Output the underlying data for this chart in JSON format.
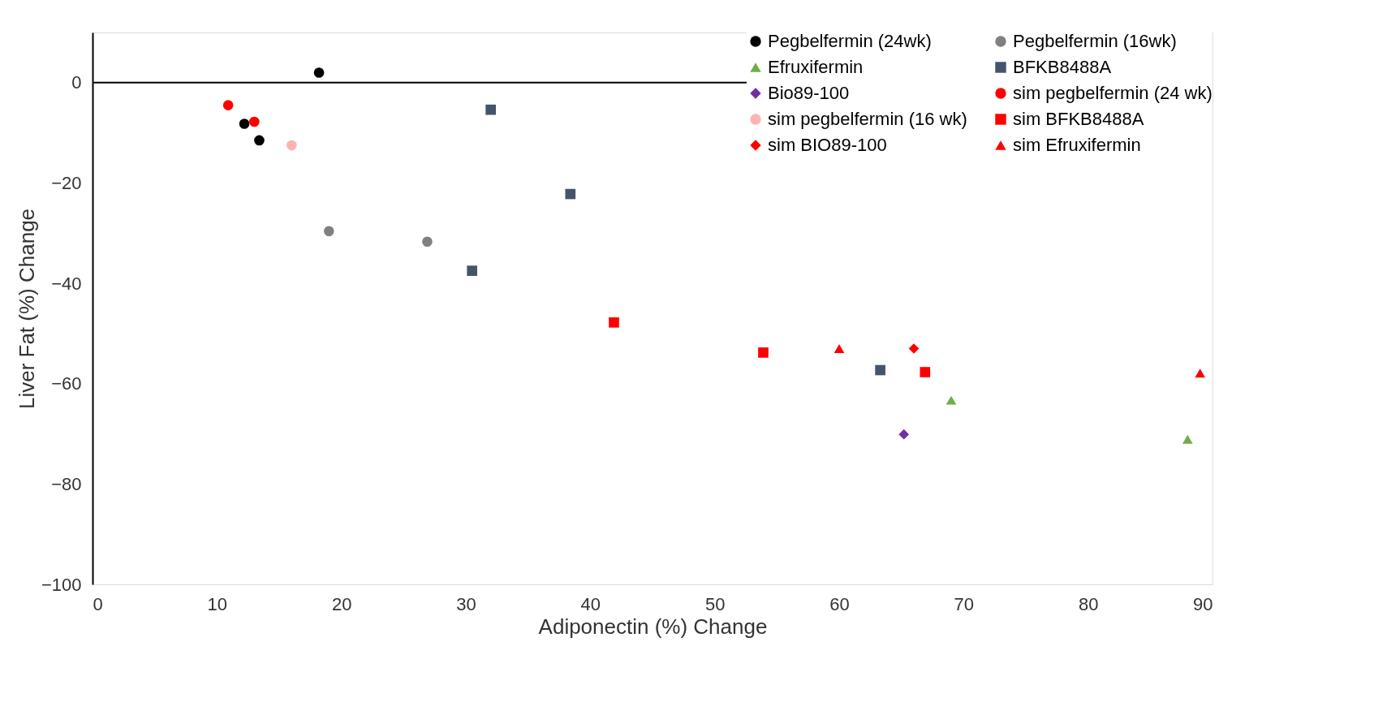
{
  "chart_data": {
    "type": "scatter",
    "xlabel": "Adiponectin (%) Change",
    "ylabel": "Liver Fat (%) Change",
    "xlim": [
      0,
      90
    ],
    "ylim": [
      -100,
      10
    ],
    "xticks": [
      0,
      10,
      20,
      30,
      40,
      50,
      60,
      70,
      80,
      90
    ],
    "yticks": [
      -100,
      -80,
      -60,
      -40,
      -20,
      0
    ],
    "grid": false,
    "legend": "top right",
    "ref_lines": [
      {
        "axis": "y",
        "value": 0
      }
    ],
    "series": [
      {
        "name": "Pegbelfermin (24wk)",
        "color": "#000000",
        "marker": "circle",
        "x": [
          18.2,
          12.2,
          13.4
        ],
        "values": [
          2.0,
          -8.2,
          -11.5
        ]
      },
      {
        "name": "Pegbelfermin (16wk)",
        "color": "#808080",
        "marker": "circle",
        "x": [
          19.0,
          26.9
        ],
        "values": [
          -29.6,
          -31.7
        ]
      },
      {
        "name": "Efruxifermin",
        "color": "#70ad47",
        "marker": "triangle",
        "x": [
          69.0,
          88.0
        ],
        "values": [
          -63.3,
          -71.1
        ]
      },
      {
        "name": "BFKB8488A",
        "color": "#44546a",
        "marker": "square",
        "x": [
          32.0,
          38.4,
          30.5,
          63.3
        ],
        "values": [
          -5.4,
          -22.2,
          -37.5,
          -57.3
        ]
      },
      {
        "name": "Bio89-100",
        "color": "#7030a0",
        "marker": "diamond",
        "x": [
          65.2
        ],
        "values": [
          -70.1
        ]
      },
      {
        "name": "sim pegbelfermin (24 wk)",
        "color": "#ff0000",
        "marker": "circle",
        "x": [
          10.9,
          12.9,
          13.0
        ],
        "values": [
          -4.5,
          null,
          -7.8
        ]
      },
      {
        "name": "sim pegbelfermin (16 wk)",
        "color": "#ffb3b3",
        "marker": "circle",
        "x": [
          16.0
        ],
        "values": [
          -12.5
        ]
      },
      {
        "name": "sim BFKB8488A",
        "color": "#ff0000",
        "marker": "square",
        "x": [
          41.9,
          53.9,
          66.9
        ],
        "values": [
          -47.8,
          -53.8,
          -57.7
        ]
      },
      {
        "name": "sim BIO89-100",
        "color": "#ff0000",
        "marker": "diamond",
        "x": [
          66.0
        ],
        "values": [
          -53.0
        ]
      },
      {
        "name": "sim Efruxifermin",
        "color": "#ff0000",
        "marker": "triangle",
        "x": [
          60.0,
          89.0
        ],
        "values": [
          -53.0,
          -57.9
        ]
      }
    ]
  }
}
